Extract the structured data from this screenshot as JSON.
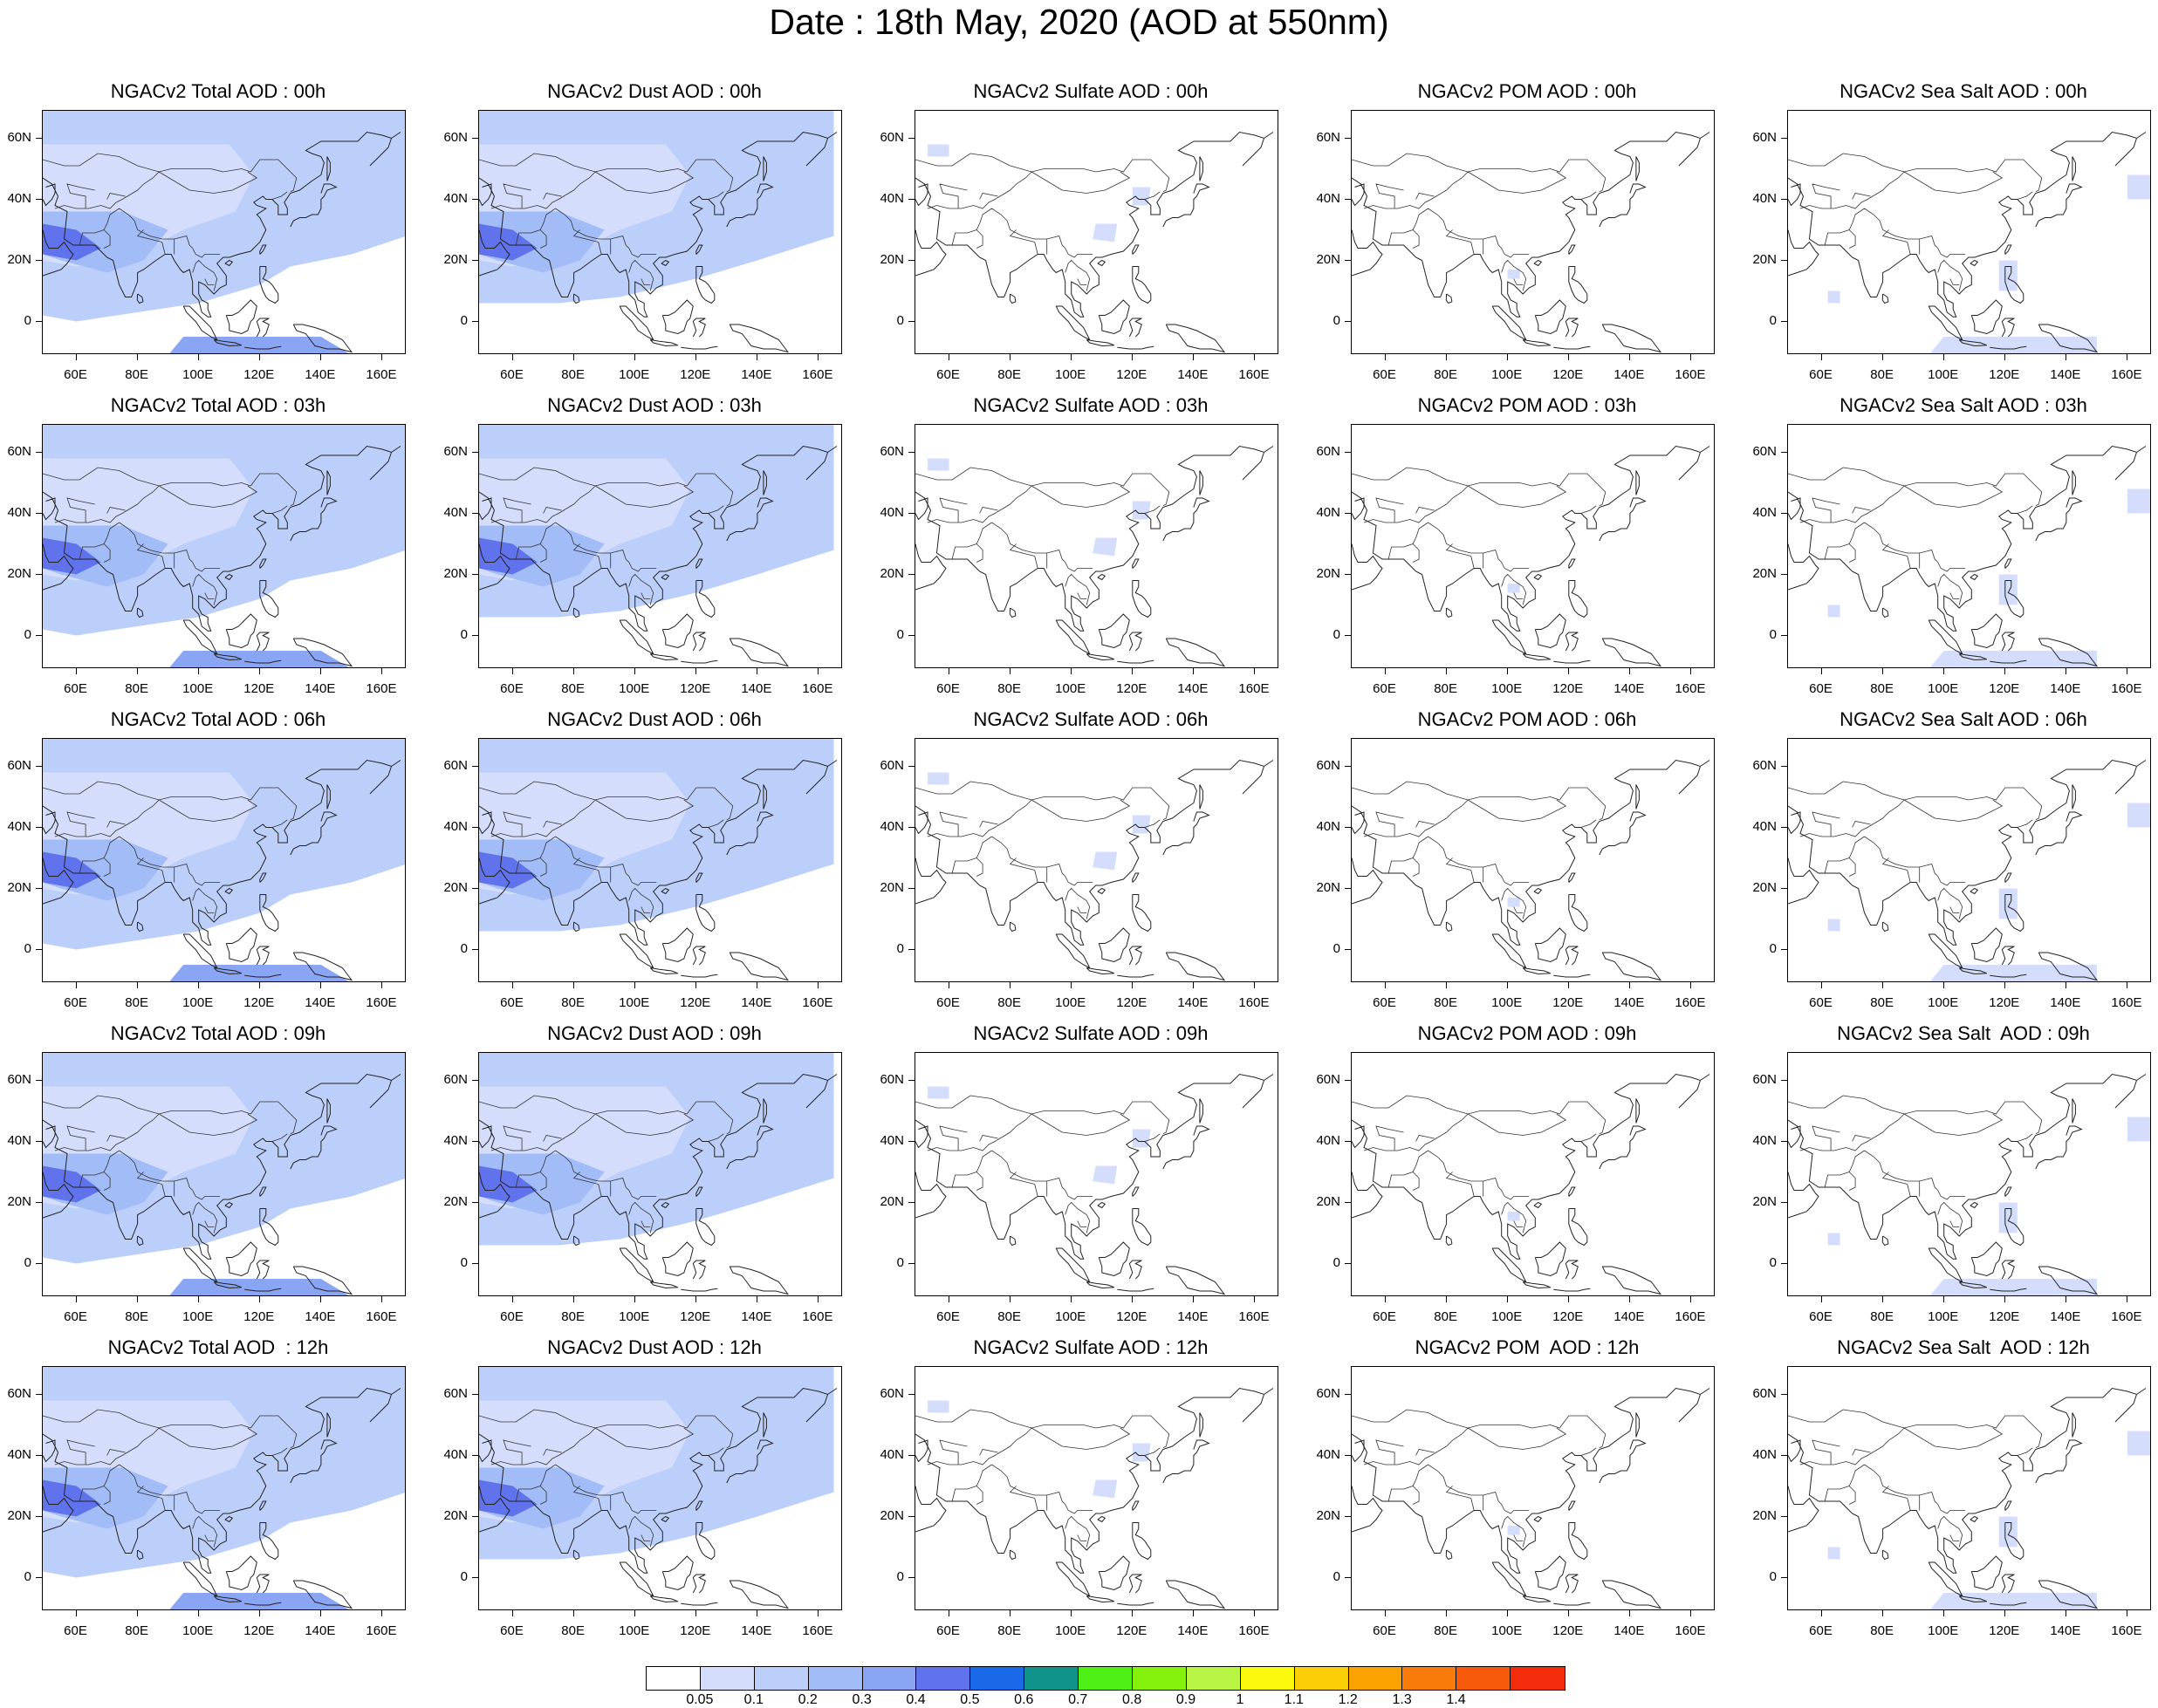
{
  "title": "Date : 18th May, 2020 (AOD at 550nm)",
  "xticks": [
    "60E",
    "80E",
    "100E",
    "120E",
    "140E",
    "160E"
  ],
  "yticks": [
    "60N",
    "40N",
    "20N",
    "0"
  ],
  "colorbar": {
    "colors": [
      "#ffffff",
      "#d4defc",
      "#bccefa",
      "#a2bcf7",
      "#8aa5f4",
      "#6072ec",
      "#1969e8",
      "#10938a",
      "#4ff016",
      "#84f20c",
      "#b8f545",
      "#fbfa0c",
      "#fbcf07",
      "#fba200",
      "#f97b0a",
      "#f75a0a",
      "#f52c0b"
    ],
    "labels": [
      "0.05",
      "0.1",
      "0.2",
      "0.3",
      "0.4",
      "0.5",
      "0.6",
      "0.7",
      "0.8",
      "0.9",
      "1",
      "1.1",
      "1.2",
      "1.3",
      "1.4"
    ]
  },
  "panels": [
    {
      "title": "NGACv2 Total AOD : 00h",
      "type": "total"
    },
    {
      "title": "NGACv2 Dust AOD : 00h",
      "type": "dust"
    },
    {
      "title": "NGACv2 Sulfate AOD : 00h",
      "type": "sulfate"
    },
    {
      "title": "NGACv2 POM AOD : 00h",
      "type": "pom"
    },
    {
      "title": "NGACv2 Sea Salt AOD : 00h",
      "type": "seasalt"
    },
    {
      "title": "NGACv2 Total AOD : 03h",
      "type": "total"
    },
    {
      "title": "NGACv2 Dust AOD : 03h",
      "type": "dust"
    },
    {
      "title": "NGACv2 Sulfate AOD : 03h",
      "type": "sulfate"
    },
    {
      "title": "NGACv2 POM AOD : 03h",
      "type": "pom"
    },
    {
      "title": "NGACv2 Sea Salt AOD : 03h",
      "type": "seasalt"
    },
    {
      "title": "NGACv2 Total AOD : 06h",
      "type": "total"
    },
    {
      "title": "NGACv2 Dust AOD : 06h",
      "type": "dust"
    },
    {
      "title": "NGACv2 Sulfate AOD : 06h",
      "type": "sulfate"
    },
    {
      "title": "NGACv2 POM AOD : 06h",
      "type": "pom"
    },
    {
      "title": "NGACv2 Sea Salt AOD : 06h",
      "type": "seasalt"
    },
    {
      "title": "NGACv2 Total AOD : 09h",
      "type": "total"
    },
    {
      "title": "NGACv2 Dust AOD : 09h",
      "type": "dust"
    },
    {
      "title": "NGACv2 Sulfate AOD : 09h",
      "type": "sulfate"
    },
    {
      "title": "NGACv2 POM AOD : 09h",
      "type": "pom"
    },
    {
      "title": "NGACv2 Sea Salt  AOD : 09h",
      "type": "seasalt"
    },
    {
      "title": "NGACv2 Total AOD  : 12h",
      "type": "total"
    },
    {
      "title": "NGACv2 Dust AOD : 12h",
      "type": "dust"
    },
    {
      "title": "NGACv2 Sulfate AOD : 12h",
      "type": "sulfate"
    },
    {
      "title": "NGACv2 POM  AOD : 12h",
      "type": "pom"
    },
    {
      "title": "NGACv2 Sea Salt  AOD : 12h",
      "type": "seasalt"
    }
  ]
}
